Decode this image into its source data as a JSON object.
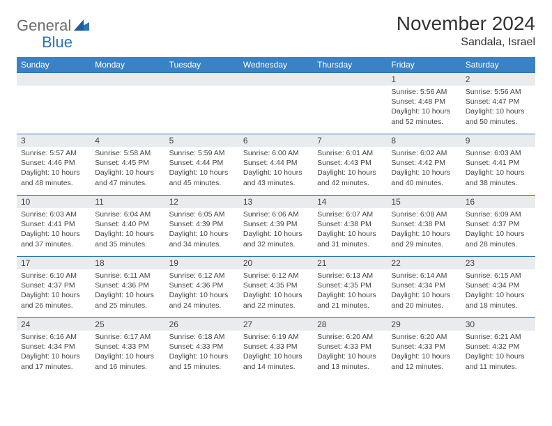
{
  "logo": {
    "text1": "General",
    "text2": "Blue"
  },
  "title": "November 2024",
  "location": "Sandala, Israel",
  "columns": [
    "Sunday",
    "Monday",
    "Tuesday",
    "Wednesday",
    "Thursday",
    "Friday",
    "Saturday"
  ],
  "colors": {
    "header_bg": "#3a82c4",
    "border": "#2a73b8",
    "daynum_bg": "#e9ecef",
    "text": "#444444",
    "logo_gray": "#6b6b6b",
    "logo_blue": "#2a73b8"
  },
  "weeks": [
    [
      null,
      null,
      null,
      null,
      null,
      {
        "n": "1",
        "sunrise": "5:56 AM",
        "sunset": "4:48 PM",
        "daylight": "10 hours and 52 minutes."
      },
      {
        "n": "2",
        "sunrise": "5:56 AM",
        "sunset": "4:47 PM",
        "daylight": "10 hours and 50 minutes."
      }
    ],
    [
      {
        "n": "3",
        "sunrise": "5:57 AM",
        "sunset": "4:46 PM",
        "daylight": "10 hours and 48 minutes."
      },
      {
        "n": "4",
        "sunrise": "5:58 AM",
        "sunset": "4:45 PM",
        "daylight": "10 hours and 47 minutes."
      },
      {
        "n": "5",
        "sunrise": "5:59 AM",
        "sunset": "4:44 PM",
        "daylight": "10 hours and 45 minutes."
      },
      {
        "n": "6",
        "sunrise": "6:00 AM",
        "sunset": "4:44 PM",
        "daylight": "10 hours and 43 minutes."
      },
      {
        "n": "7",
        "sunrise": "6:01 AM",
        "sunset": "4:43 PM",
        "daylight": "10 hours and 42 minutes."
      },
      {
        "n": "8",
        "sunrise": "6:02 AM",
        "sunset": "4:42 PM",
        "daylight": "10 hours and 40 minutes."
      },
      {
        "n": "9",
        "sunrise": "6:03 AM",
        "sunset": "4:41 PM",
        "daylight": "10 hours and 38 minutes."
      }
    ],
    [
      {
        "n": "10",
        "sunrise": "6:03 AM",
        "sunset": "4:41 PM",
        "daylight": "10 hours and 37 minutes."
      },
      {
        "n": "11",
        "sunrise": "6:04 AM",
        "sunset": "4:40 PM",
        "daylight": "10 hours and 35 minutes."
      },
      {
        "n": "12",
        "sunrise": "6:05 AM",
        "sunset": "4:39 PM",
        "daylight": "10 hours and 34 minutes."
      },
      {
        "n": "13",
        "sunrise": "6:06 AM",
        "sunset": "4:39 PM",
        "daylight": "10 hours and 32 minutes."
      },
      {
        "n": "14",
        "sunrise": "6:07 AM",
        "sunset": "4:38 PM",
        "daylight": "10 hours and 31 minutes."
      },
      {
        "n": "15",
        "sunrise": "6:08 AM",
        "sunset": "4:38 PM",
        "daylight": "10 hours and 29 minutes."
      },
      {
        "n": "16",
        "sunrise": "6:09 AM",
        "sunset": "4:37 PM",
        "daylight": "10 hours and 28 minutes."
      }
    ],
    [
      {
        "n": "17",
        "sunrise": "6:10 AM",
        "sunset": "4:37 PM",
        "daylight": "10 hours and 26 minutes."
      },
      {
        "n": "18",
        "sunrise": "6:11 AM",
        "sunset": "4:36 PM",
        "daylight": "10 hours and 25 minutes."
      },
      {
        "n": "19",
        "sunrise": "6:12 AM",
        "sunset": "4:36 PM",
        "daylight": "10 hours and 24 minutes."
      },
      {
        "n": "20",
        "sunrise": "6:12 AM",
        "sunset": "4:35 PM",
        "daylight": "10 hours and 22 minutes."
      },
      {
        "n": "21",
        "sunrise": "6:13 AM",
        "sunset": "4:35 PM",
        "daylight": "10 hours and 21 minutes."
      },
      {
        "n": "22",
        "sunrise": "6:14 AM",
        "sunset": "4:34 PM",
        "daylight": "10 hours and 20 minutes."
      },
      {
        "n": "23",
        "sunrise": "6:15 AM",
        "sunset": "4:34 PM",
        "daylight": "10 hours and 18 minutes."
      }
    ],
    [
      {
        "n": "24",
        "sunrise": "6:16 AM",
        "sunset": "4:34 PM",
        "daylight": "10 hours and 17 minutes."
      },
      {
        "n": "25",
        "sunrise": "6:17 AM",
        "sunset": "4:33 PM",
        "daylight": "10 hours and 16 minutes."
      },
      {
        "n": "26",
        "sunrise": "6:18 AM",
        "sunset": "4:33 PM",
        "daylight": "10 hours and 15 minutes."
      },
      {
        "n": "27",
        "sunrise": "6:19 AM",
        "sunset": "4:33 PM",
        "daylight": "10 hours and 14 minutes."
      },
      {
        "n": "28",
        "sunrise": "6:20 AM",
        "sunset": "4:33 PM",
        "daylight": "10 hours and 13 minutes."
      },
      {
        "n": "29",
        "sunrise": "6:20 AM",
        "sunset": "4:33 PM",
        "daylight": "10 hours and 12 minutes."
      },
      {
        "n": "30",
        "sunrise": "6:21 AM",
        "sunset": "4:32 PM",
        "daylight": "10 hours and 11 minutes."
      }
    ]
  ],
  "labels": {
    "sunrise": "Sunrise: ",
    "sunset": "Sunset: ",
    "daylight": "Daylight: "
  }
}
